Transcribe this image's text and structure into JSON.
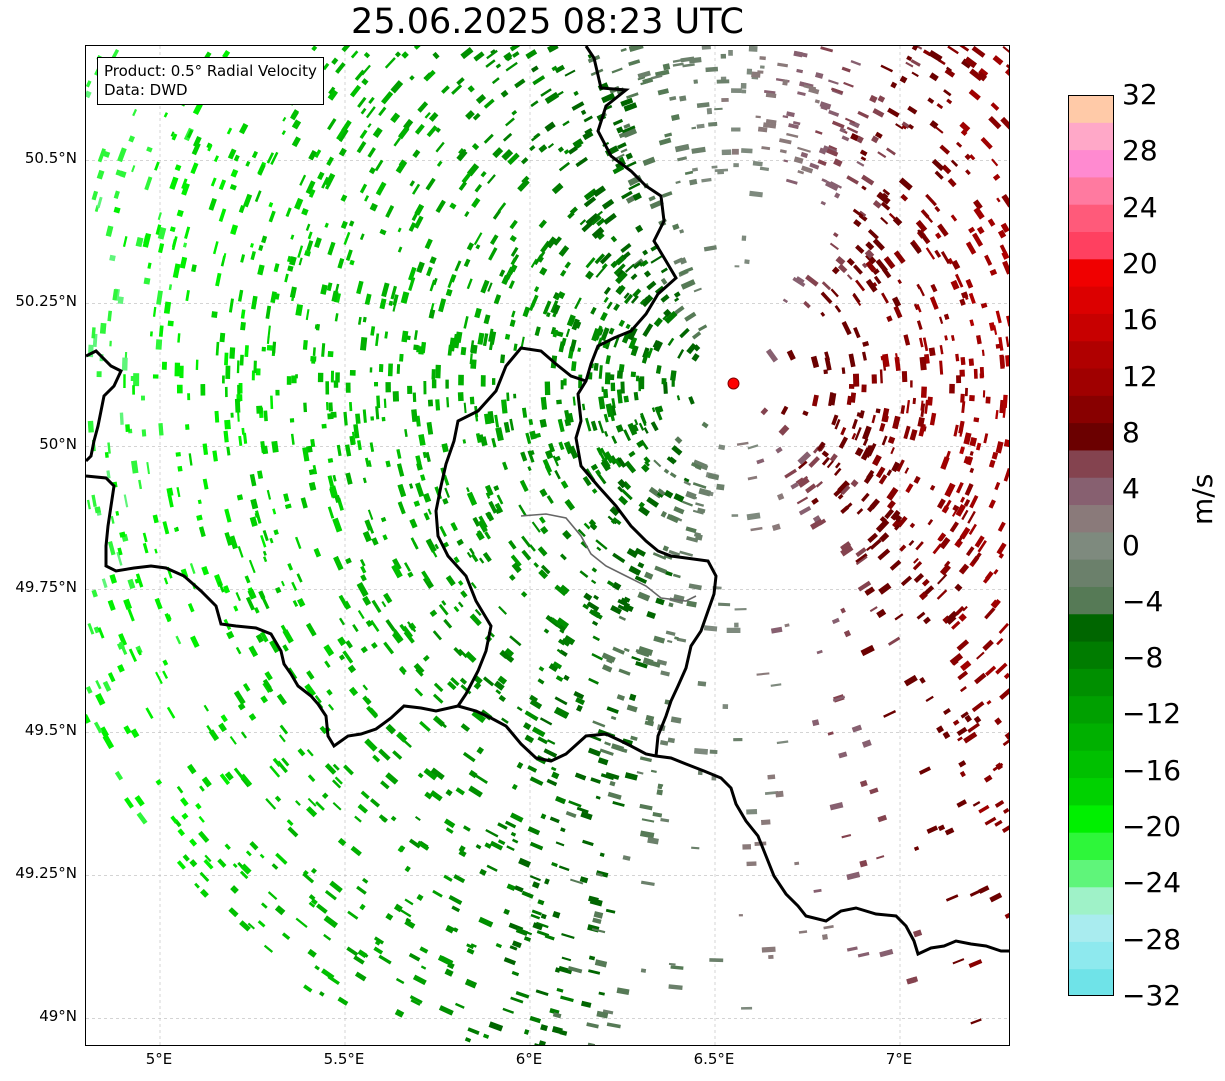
{
  "title": "25.06.2025 08:23 UTC",
  "info": {
    "product": "Product: 0.5° Radial Velocity",
    "source": "Data: DWD"
  },
  "axes": {
    "lat_labels": [
      "50.5°N",
      "50.25°N",
      "50°N",
      "49.75°N",
      "49.5°N",
      "49.25°N",
      "49°N"
    ],
    "lat_values": [
      50.5,
      50.25,
      50.0,
      49.75,
      49.5,
      49.25,
      49.0
    ],
    "lon_labels": [
      "5°E",
      "5.5°E",
      "6°E",
      "6.5°E",
      "7°E"
    ],
    "lon_values": [
      5.0,
      5.5,
      6.0,
      6.5,
      7.0
    ],
    "lon_range": [
      4.8,
      7.3
    ],
    "lat_range": [
      48.95,
      50.7
    ]
  },
  "radar_site": {
    "lon": 6.55,
    "lat": 50.11,
    "color": "#ff0000"
  },
  "colorbar": {
    "unit": "m/s",
    "range": [
      -32,
      32
    ],
    "tick_labels": [
      "32",
      "28",
      "24",
      "20",
      "16",
      "12",
      "8",
      "4",
      "0",
      "−4",
      "−8",
      "−12",
      "−16",
      "−20",
      "−24",
      "−28",
      "−32"
    ],
    "colors": [
      "#6fe3e8",
      "#8ee9ee",
      "#a9ecef",
      "#9ff2c8",
      "#5ff57a",
      "#2ef63a",
      "#00f000",
      "#00d200",
      "#00c000",
      "#00b000",
      "#00a000",
      "#008f00",
      "#007c00",
      "#006600",
      "#567a56",
      "#6b806b",
      "#7e8a7e",
      "#8a7a7a",
      "#876070",
      "#84434f",
      "#6b0000",
      "#880000",
      "#a00000",
      "#b00000",
      "#c80000",
      "#dc0000",
      "#f00000",
      "#ff4060",
      "#ff5a7a",
      "#ff7aa0",
      "#ff8ad0",
      "#ffa8c8",
      "#ffcaa8"
    ]
  }
}
